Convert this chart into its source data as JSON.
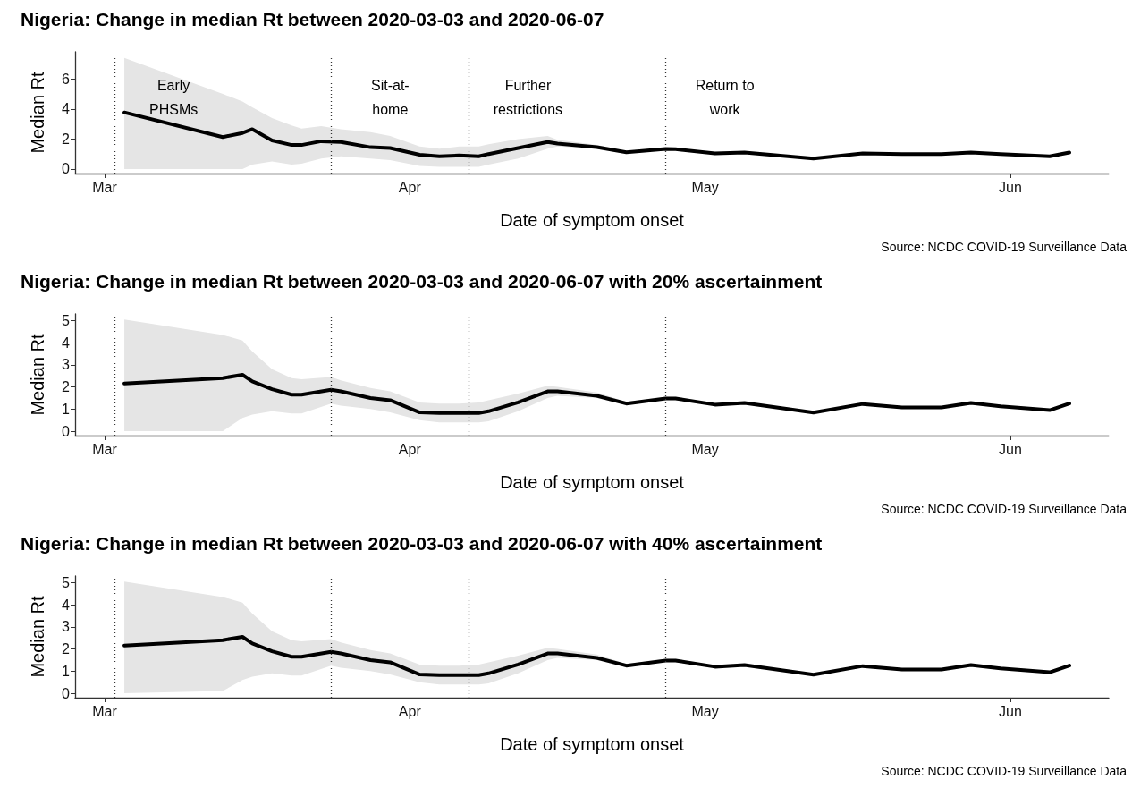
{
  "chart_data": [
    {
      "type": "line",
      "title": "Nigeria: Change in median Rt between 2020-03-03 and 2020-06-07",
      "xlabel": "Date of symptom onset",
      "ylabel": "Median Rt",
      "x": [
        "2020-03-03",
        "2020-03-13",
        "2020-03-15",
        "2020-03-16",
        "2020-03-18",
        "2020-03-20",
        "2020-03-21",
        "2020-03-23",
        "2020-03-25",
        "2020-03-28",
        "2020-03-30",
        "2020-04-02",
        "2020-04-04",
        "2020-04-06",
        "2020-04-08",
        "2020-04-09",
        "2020-04-12",
        "2020-04-15",
        "2020-04-16",
        "2020-04-20",
        "2020-04-23",
        "2020-04-27",
        "2020-04-28",
        "2020-05-02",
        "2020-05-05",
        "2020-05-12",
        "2020-05-17",
        "2020-05-21",
        "2020-05-25",
        "2020-05-28",
        "2020-05-31",
        "2020-06-05",
        "2020-06-07"
      ],
      "series": [
        {
          "color": "#000000",
          "values": [
            3.77,
            2.13,
            2.4,
            2.65,
            1.9,
            1.6,
            1.6,
            1.85,
            1.8,
            1.45,
            1.4,
            0.95,
            0.85,
            0.9,
            0.85,
            1.0,
            1.4,
            1.8,
            1.7,
            1.46,
            1.12,
            1.34,
            1.32,
            1.04,
            1.1,
            0.7,
            1.04,
            1.0,
            1.0,
            1.1,
            1.0,
            0.85,
            1.1
          ],
          "lower": [
            0,
            0,
            0,
            0.3,
            0.5,
            0.3,
            0.35,
            0.7,
            0.85,
            0.7,
            0.6,
            0.2,
            0.15,
            0.15,
            0.15,
            0.3,
            0.7,
            1.35,
            1.5,
            1.36,
            1.05,
            1.28,
            1.27,
            1.0,
            1.06,
            0.66,
            1.0,
            0.96,
            0.96,
            1.06,
            0.96,
            0.81,
            1.05
          ],
          "upper": [
            7.4,
            5.0,
            4.5,
            4.1,
            3.4,
            2.9,
            2.7,
            2.85,
            2.65,
            2.45,
            2.2,
            1.5,
            1.35,
            1.5,
            1.5,
            1.65,
            2.0,
            2.2,
            1.95,
            1.6,
            1.22,
            1.42,
            1.38,
            1.08,
            1.14,
            0.74,
            1.08,
            1.04,
            1.04,
            1.14,
            1.04,
            0.89,
            1.15
          ]
        }
      ],
      "xlim": [
        "2020-02-27",
        "2020-06-11"
      ],
      "xticks": [
        {
          "value": "2020-03-01",
          "label": "Mar"
        },
        {
          "value": "2020-04-01",
          "label": "Apr"
        },
        {
          "value": "2020-05-01",
          "label": "May"
        },
        {
          "value": "2020-06-01",
          "label": "Jun"
        }
      ],
      "ylim": [
        -0.3,
        7.8
      ],
      "yticks": [
        0,
        2,
        4,
        6
      ],
      "ref_lines": [
        {
          "axis": "x",
          "value": "2020-03-02",
          "label": "Early\nPHSMs",
          "line_style": "dotted",
          "color": "#333333"
        },
        {
          "axis": "x",
          "value": "2020-03-24",
          "label": "Sit-at-\nhome",
          "line_style": "dotted",
          "color": "#333333"
        },
        {
          "axis": "x",
          "value": "2020-04-07",
          "label": "Further\nrestrictions",
          "line_style": "dotted",
          "color": "#333333"
        },
        {
          "axis": "x",
          "value": "2020-04-27",
          "label": "Return to\nwork",
          "line_style": "dotted",
          "color": "#333333"
        }
      ],
      "annotations": [
        "Source: NCDC COVID-19 Surveillance Data"
      ],
      "marker": "none",
      "line_style": "solid",
      "grid": false
    },
    {
      "type": "line",
      "title": "Nigeria: Change in median Rt between 2020-03-03 and 2020-06-07 with 20% ascertainment",
      "xlabel": "Date of symptom onset",
      "ylabel": "Median Rt",
      "x": [
        "2020-03-03",
        "2020-03-13",
        "2020-03-15",
        "2020-03-16",
        "2020-03-18",
        "2020-03-20",
        "2020-03-21",
        "2020-03-24",
        "2020-03-25",
        "2020-03-28",
        "2020-03-30",
        "2020-04-02",
        "2020-04-04",
        "2020-04-06",
        "2020-04-08",
        "2020-04-09",
        "2020-04-12",
        "2020-04-15",
        "2020-04-16",
        "2020-04-20",
        "2020-04-23",
        "2020-04-27",
        "2020-04-28",
        "2020-05-02",
        "2020-05-05",
        "2020-05-12",
        "2020-05-17",
        "2020-05-21",
        "2020-05-25",
        "2020-05-28",
        "2020-05-31",
        "2020-06-05",
        "2020-06-07"
      ],
      "series": [
        {
          "color": "#000000",
          "values": [
            2.16,
            2.4,
            2.55,
            2.25,
            1.9,
            1.65,
            1.65,
            1.87,
            1.8,
            1.5,
            1.4,
            0.85,
            0.82,
            0.82,
            0.82,
            0.9,
            1.3,
            1.8,
            1.8,
            1.6,
            1.25,
            1.48,
            1.48,
            1.2,
            1.28,
            0.84,
            1.23,
            1.07,
            1.07,
            1.28,
            1.12,
            0.95,
            1.25
          ],
          "lower": [
            0,
            0,
            0.6,
            0.75,
            0.9,
            0.8,
            0.8,
            1.25,
            1.15,
            1.0,
            0.85,
            0.5,
            0.4,
            0.4,
            0.4,
            0.45,
            0.9,
            1.5,
            1.6,
            1.5,
            1.18,
            1.42,
            1.42,
            1.15,
            1.23,
            0.8,
            1.18,
            1.02,
            1.02,
            1.23,
            1.07,
            0.9,
            1.2
          ],
          "upper": [
            5.05,
            4.35,
            4.1,
            3.6,
            2.8,
            2.4,
            2.35,
            2.45,
            2.3,
            1.95,
            1.8,
            1.3,
            1.25,
            1.25,
            1.3,
            1.4,
            1.7,
            2.05,
            2.0,
            1.75,
            1.33,
            1.55,
            1.55,
            1.25,
            1.33,
            0.88,
            1.28,
            1.12,
            1.12,
            1.33,
            1.17,
            1.0,
            1.3
          ]
        }
      ],
      "xlim": [
        "2020-02-27",
        "2020-06-11"
      ],
      "xticks": [
        {
          "value": "2020-03-01",
          "label": "Mar"
        },
        {
          "value": "2020-04-01",
          "label": "Apr"
        },
        {
          "value": "2020-05-01",
          "label": "May"
        },
        {
          "value": "2020-06-01",
          "label": "Jun"
        }
      ],
      "ylim": [
        -0.2,
        5.3
      ],
      "yticks": [
        0,
        1,
        2,
        3,
        4,
        5
      ],
      "ref_lines": [
        {
          "axis": "x",
          "value": "2020-03-02",
          "line_style": "dotted",
          "color": "#333333"
        },
        {
          "axis": "x",
          "value": "2020-03-24",
          "line_style": "dotted",
          "color": "#333333"
        },
        {
          "axis": "x",
          "value": "2020-04-07",
          "line_style": "dotted",
          "color": "#333333"
        },
        {
          "axis": "x",
          "value": "2020-04-27",
          "line_style": "dotted",
          "color": "#333333"
        }
      ],
      "annotations": [
        "Source: NCDC COVID-19 Surveillance Data"
      ],
      "marker": "none",
      "line_style": "solid",
      "grid": false
    },
    {
      "type": "line",
      "title": "Nigeria: Change in median Rt between 2020-03-03 and 2020-06-07 with 40% ascertainment",
      "xlabel": "Date of symptom onset",
      "ylabel": "Median Rt",
      "x": [
        "2020-03-03",
        "2020-03-13",
        "2020-03-15",
        "2020-03-16",
        "2020-03-18",
        "2020-03-20",
        "2020-03-21",
        "2020-03-24",
        "2020-03-25",
        "2020-03-28",
        "2020-03-30",
        "2020-04-02",
        "2020-04-04",
        "2020-04-06",
        "2020-04-08",
        "2020-04-09",
        "2020-04-12",
        "2020-04-15",
        "2020-04-16",
        "2020-04-20",
        "2020-04-23",
        "2020-04-27",
        "2020-04-28",
        "2020-05-02",
        "2020-05-05",
        "2020-05-12",
        "2020-05-17",
        "2020-05-21",
        "2020-05-25",
        "2020-05-28",
        "2020-05-31",
        "2020-06-05",
        "2020-06-07"
      ],
      "series": [
        {
          "color": "#000000",
          "values": [
            2.16,
            2.4,
            2.55,
            2.25,
            1.9,
            1.65,
            1.65,
            1.87,
            1.8,
            1.5,
            1.4,
            0.85,
            0.82,
            0.82,
            0.82,
            0.9,
            1.3,
            1.8,
            1.8,
            1.6,
            1.25,
            1.48,
            1.48,
            1.2,
            1.28,
            0.84,
            1.23,
            1.07,
            1.07,
            1.28,
            1.12,
            0.95,
            1.25
          ],
          "lower": [
            0,
            0.1,
            0.6,
            0.75,
            0.9,
            0.8,
            0.8,
            1.25,
            1.15,
            1.0,
            0.85,
            0.5,
            0.4,
            0.4,
            0.4,
            0.45,
            0.9,
            1.5,
            1.6,
            1.5,
            1.18,
            1.42,
            1.42,
            1.15,
            1.23,
            0.8,
            1.18,
            1.02,
            1.02,
            1.23,
            1.07,
            0.9,
            1.2
          ],
          "upper": [
            5.05,
            4.35,
            4.1,
            3.6,
            2.8,
            2.4,
            2.35,
            2.45,
            2.3,
            1.95,
            1.8,
            1.3,
            1.25,
            1.25,
            1.3,
            1.4,
            1.7,
            2.05,
            2.0,
            1.75,
            1.33,
            1.55,
            1.55,
            1.25,
            1.33,
            0.88,
            1.28,
            1.12,
            1.12,
            1.33,
            1.17,
            1.0,
            1.3
          ]
        }
      ],
      "xlim": [
        "2020-02-27",
        "2020-06-11"
      ],
      "xticks": [
        {
          "value": "2020-03-01",
          "label": "Mar"
        },
        {
          "value": "2020-04-01",
          "label": "Apr"
        },
        {
          "value": "2020-05-01",
          "label": "May"
        },
        {
          "value": "2020-06-01",
          "label": "Jun"
        }
      ],
      "ylim": [
        -0.2,
        5.3
      ],
      "yticks": [
        0,
        1,
        2,
        3,
        4,
        5
      ],
      "ref_lines": [
        {
          "axis": "x",
          "value": "2020-03-02",
          "line_style": "dotted",
          "color": "#333333"
        },
        {
          "axis": "x",
          "value": "2020-03-24",
          "line_style": "dotted",
          "color": "#333333"
        },
        {
          "axis": "x",
          "value": "2020-04-07",
          "line_style": "dotted",
          "color": "#333333"
        },
        {
          "axis": "x",
          "value": "2020-04-27",
          "line_style": "dotted",
          "color": "#333333"
        }
      ],
      "annotations": [
        "Source: NCDC COVID-19 Surveillance Data"
      ],
      "marker": "none",
      "line_style": "solid",
      "grid": false
    }
  ]
}
